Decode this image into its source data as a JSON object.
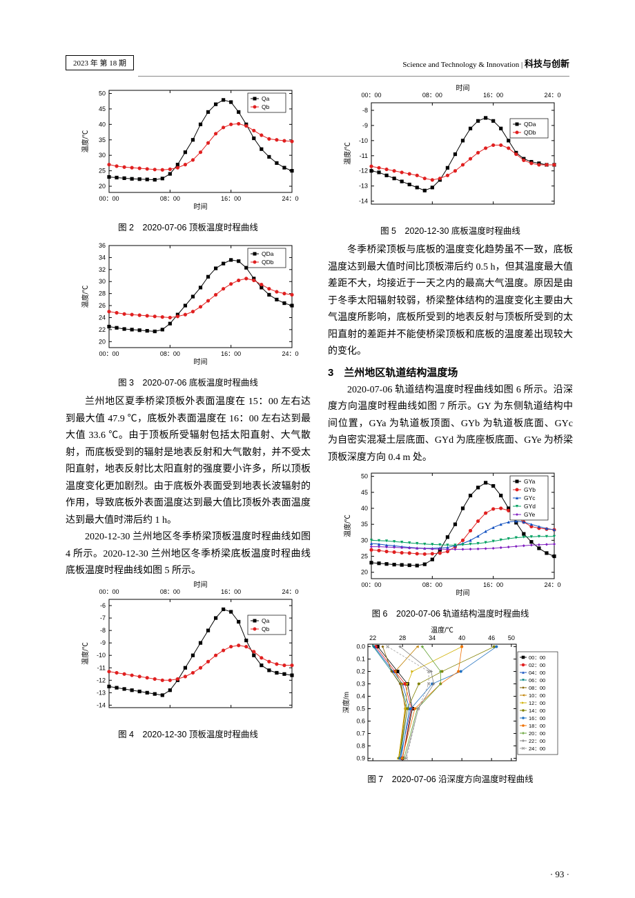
{
  "header": {
    "issue": "2023 年 第 18 期",
    "journal_en": "Science and Technology & Innovation",
    "journal_cn": "科技与创新"
  },
  "page_number": "· 93 ·",
  "fig2": {
    "caption": "图 2　2020-07-06 顶板温度时程曲线",
    "type": "line",
    "xlabel": "时间",
    "ylabel": "温度/℃",
    "xticks": [
      "00：00",
      "08：00",
      "16：00",
      "24：00"
    ],
    "yticks": [
      20,
      25,
      30,
      35,
      40,
      45,
      50
    ],
    "ylim": [
      18,
      51
    ],
    "series": [
      {
        "name": "Qa",
        "marker": "square",
        "color": "#000000",
        "x": [
          0,
          1,
          2,
          3,
          4,
          5,
          6,
          7,
          8,
          9,
          10,
          11,
          12,
          13,
          14,
          15,
          16,
          17,
          18,
          19,
          20,
          21,
          22,
          23,
          24
        ],
        "y": [
          23,
          22.8,
          22.6,
          22.4,
          22.3,
          22.2,
          22.1,
          22.5,
          24,
          27,
          31,
          35,
          40,
          44,
          46.5,
          47.9,
          47.2,
          44,
          40,
          35.5,
          32,
          29.5,
          27.5,
          26,
          25
        ]
      },
      {
        "name": "Qb",
        "marker": "circle",
        "color": "#e02020",
        "x": [
          0,
          1,
          2,
          3,
          4,
          5,
          6,
          7,
          8,
          9,
          10,
          11,
          12,
          13,
          14,
          15,
          16,
          17,
          18,
          19,
          20,
          21,
          22,
          23,
          24
        ],
        "y": [
          27,
          26.5,
          26.2,
          26,
          25.8,
          25.6,
          25.4,
          25.3,
          25.5,
          26,
          27,
          28.5,
          31,
          34,
          37,
          39,
          40,
          40.2,
          39.5,
          38,
          36.5,
          35.3,
          35,
          34.7,
          34.5
        ]
      }
    ],
    "legend_pos": "top-right",
    "background_color": "#ffffff",
    "axis_color": "#000000",
    "title_fontsize": 10,
    "label_fontsize": 10
  },
  "fig3": {
    "caption": "图 3　2020-07-06 底板温度时程曲线",
    "type": "line",
    "xlabel": "时间",
    "ylabel": "温度/℃",
    "xticks": [
      "00：00",
      "08：00",
      "16：00",
      "24：00"
    ],
    "yticks": [
      20,
      22,
      24,
      26,
      28,
      30,
      32,
      34,
      36
    ],
    "ylim": [
      19,
      36
    ],
    "series": [
      {
        "name": "QDa",
        "marker": "square",
        "color": "#000000",
        "x": [
          0,
          1,
          2,
          3,
          4,
          5,
          6,
          7,
          8,
          9,
          10,
          11,
          12,
          13,
          14,
          15,
          16,
          17,
          18,
          19,
          20,
          21,
          22,
          23,
          24
        ],
        "y": [
          22.5,
          22.3,
          22.1,
          22,
          21.9,
          21.8,
          21.7,
          22,
          23,
          24.5,
          26,
          27.5,
          29,
          30.8,
          32.2,
          33,
          33.6,
          33.4,
          32.3,
          30.5,
          29,
          27.8,
          27,
          26.4,
          26
        ]
      },
      {
        "name": "QDb",
        "marker": "circle",
        "color": "#e02020",
        "x": [
          0,
          1,
          2,
          3,
          4,
          5,
          6,
          7,
          8,
          9,
          10,
          11,
          12,
          13,
          14,
          15,
          16,
          17,
          18,
          19,
          20,
          21,
          22,
          23,
          24
        ],
        "y": [
          25,
          24.8,
          24.6,
          24.5,
          24.4,
          24.3,
          24.2,
          24.1,
          24,
          24.2,
          24.5,
          25,
          25.8,
          26.8,
          27.8,
          28.8,
          29.6,
          30.2,
          30.5,
          30.2,
          29.5,
          28.8,
          28.3,
          28,
          27.8
        ]
      }
    ],
    "legend_pos": "top-right"
  },
  "para1": "兰州地区夏季桥梁顶板外表面温度在 15：00 左右达到最大值 47.9 ℃，底板外表面温度在 16：00 左右达到最大值 33.6 ℃。由于顶板所受辐射包括太阳直射、大气散射，而底板受到的辐射是地表反射和大气散射，并不受太阳直射，地表反射比太阳直射的强度要小许多，所以顶板温度变化更加剧烈。由于底板外表面受到地表长波辐射的作用，导致底板外表面温度达到最大值比顶板外表面温度达到最大值时滞后约 1 h。",
  "para2": "2020-12-30 兰州地区冬季桥梁顶板温度时程曲线如图 4 所示。2020-12-30 兰州地区冬季桥梁底板温度时程曲线底板温度时程曲线如图 5 所示。",
  "fig4": {
    "caption": "图 4　2020-12-30 顶板温度时程曲线",
    "type": "line",
    "xlabel": "时间",
    "ylabel": "温度/℃",
    "xticks": [
      "00：00",
      "08：00",
      "16：00",
      "24：00"
    ],
    "yticks": [
      -14,
      -13,
      -12,
      -11,
      -10,
      -9,
      -8,
      -7,
      -6
    ],
    "ylim": [
      -14.2,
      -5.5
    ],
    "xaxis_pos": "top",
    "series": [
      {
        "name": "Qa",
        "marker": "square",
        "color": "#000000",
        "x": [
          0,
          1,
          2,
          3,
          4,
          5,
          6,
          7,
          8,
          9,
          10,
          11,
          12,
          13,
          14,
          15,
          16,
          17,
          18,
          19,
          20,
          21,
          22,
          23,
          24
        ],
        "y": [
          -12.5,
          -12.6,
          -12.7,
          -12.8,
          -12.9,
          -13,
          -13.1,
          -13.2,
          -12.8,
          -12,
          -11,
          -10,
          -9,
          -8,
          -7,
          -6.3,
          -6.5,
          -7.3,
          -8.8,
          -10,
          -10.8,
          -11.2,
          -11.4,
          -11.5,
          -11.6
        ]
      },
      {
        "name": "Qb",
        "marker": "circle",
        "color": "#e02020",
        "x": [
          0,
          1,
          2,
          3,
          4,
          5,
          6,
          7,
          8,
          9,
          10,
          11,
          12,
          13,
          14,
          15,
          16,
          17,
          18,
          19,
          20,
          21,
          22,
          23,
          24
        ],
        "y": [
          -11.3,
          -11.4,
          -11.5,
          -11.6,
          -11.7,
          -11.8,
          -11.9,
          -12,
          -12,
          -11.9,
          -11.7,
          -11.4,
          -11,
          -10.5,
          -10,
          -9.6,
          -9.3,
          -9.2,
          -9.3,
          -9.7,
          -10.2,
          -10.5,
          -10.7,
          -10.8,
          -10.8
        ]
      }
    ],
    "legend_pos": "right"
  },
  "fig5": {
    "caption": "图 5　2020-12-30 底板温度时程曲线",
    "type": "line",
    "xlabel": "时间",
    "ylabel": "温度/℃",
    "xticks": [
      "00：00",
      "08：00",
      "16：00",
      "24：00"
    ],
    "yticks": [
      -14,
      -13,
      -12,
      -11,
      -10,
      -9,
      -8
    ],
    "ylim": [
      -14.2,
      -7.5
    ],
    "xaxis_pos": "top",
    "series": [
      {
        "name": "QDa",
        "marker": "square",
        "color": "#000000",
        "x": [
          0,
          1,
          2,
          3,
          4,
          5,
          6,
          7,
          8,
          9,
          10,
          11,
          12,
          13,
          14,
          15,
          16,
          17,
          18,
          19,
          20,
          21,
          22,
          23,
          24
        ],
        "y": [
          -12,
          -12.1,
          -12.3,
          -12.5,
          -12.7,
          -12.9,
          -13.1,
          -13.3,
          -13.1,
          -12.6,
          -11.8,
          -10.9,
          -10,
          -9.2,
          -8.7,
          -8.5,
          -8.7,
          -9.2,
          -10,
          -10.8,
          -11.2,
          -11.4,
          -11.5,
          -11.6,
          -11.6
        ]
      },
      {
        "name": "QDb",
        "marker": "circle",
        "color": "#e02020",
        "x": [
          0,
          1,
          2,
          3,
          4,
          5,
          6,
          7,
          8,
          9,
          10,
          11,
          12,
          13,
          14,
          15,
          16,
          17,
          18,
          19,
          20,
          21,
          22,
          23,
          24
        ],
        "y": [
          -11.7,
          -11.8,
          -11.9,
          -12,
          -12.1,
          -12.2,
          -12.3,
          -12.5,
          -12.6,
          -12.5,
          -12.3,
          -12,
          -11.6,
          -11.2,
          -10.8,
          -10.5,
          -10.3,
          -10.3,
          -10.5,
          -10.9,
          -11.3,
          -11.5,
          -11.6,
          -11.6,
          -11.6
        ]
      }
    ],
    "legend_pos": "right"
  },
  "para3": "冬季桥梁顶板与底板的温度变化趋势虽不一致，底板温度达到最大值时间比顶板滞后约 0.5 h，但其温度最大值差距不大，均接近于一天之内的最高大气温度。原因是由于冬季太阳辐射较弱，桥梁整体结构的温度变化主要由大气温度所影响，底板所受到的地表反射与顶板所受到的太阳直射的差距并不能使桥梁顶板和底板的温度差出现较大的变化。",
  "section3_title": "3　兰州地区轨道结构温度场",
  "para4": "2020-07-06 轨道结构温度时程曲线如图 6 所示。沿深度方向温度时程曲线如图 7 所示。GY 为东侧轨道结构中间位置，GYa 为轨道板顶面、GYb 为轨道板底面、GYc 为自密实混凝土层底面、GYd 为底座板底面、GYe 为桥梁顶板深度方向 0.4 m 处。",
  "fig6": {
    "caption": "图 6　2020-07-06 轨道结构温度时程曲线",
    "type": "line",
    "xlabel": "时间",
    "ylabel": "温度/℃",
    "xticks": [
      "00：00",
      "08：00",
      "16：00",
      "24：00"
    ],
    "yticks": [
      20,
      25,
      30,
      35,
      40,
      45,
      50
    ],
    "ylim": [
      18,
      51
    ],
    "series": [
      {
        "name": "GYa",
        "marker": "square",
        "color": "#000000",
        "x": [
          0,
          1,
          2,
          3,
          4,
          5,
          6,
          7,
          8,
          9,
          10,
          11,
          12,
          13,
          14,
          15,
          16,
          17,
          18,
          19,
          20,
          21,
          22,
          23,
          24
        ],
        "y": [
          23,
          22.8,
          22.6,
          22.4,
          22.3,
          22.2,
          22.1,
          22.5,
          24,
          27,
          31,
          35,
          40,
          44,
          46.5,
          48,
          47,
          44,
          40,
          35.5,
          32,
          29.5,
          27.5,
          26,
          25
        ]
      },
      {
        "name": "GYb",
        "marker": "circle",
        "color": "#e02020",
        "x": [
          0,
          1,
          2,
          3,
          4,
          5,
          6,
          7,
          8,
          9,
          10,
          11,
          12,
          13,
          14,
          15,
          16,
          17,
          18,
          19,
          20,
          21,
          22,
          23,
          24
        ],
        "y": [
          27,
          26.8,
          26.5,
          26.3,
          26.1,
          26,
          25.8,
          25.7,
          25.8,
          26,
          26.5,
          28,
          30,
          33,
          36,
          38.5,
          39.8,
          40,
          39.3,
          37.5,
          35.7,
          34.3,
          33.8,
          33.5,
          33.3
        ]
      },
      {
        "name": "GYc",
        "marker": "triangle",
        "color": "#1050c0",
        "x": [
          0,
          1,
          2,
          3,
          4,
          5,
          6,
          7,
          8,
          9,
          10,
          11,
          12,
          13,
          14,
          15,
          16,
          17,
          18,
          19,
          20,
          21,
          22,
          23,
          24
        ],
        "y": [
          29,
          28.8,
          28.5,
          28.3,
          28,
          27.8,
          27.6,
          27.5,
          27.5,
          27.6,
          27.8,
          28.3,
          29,
          30,
          31.3,
          32.8,
          34,
          35,
          35.7,
          36,
          35.7,
          35,
          34.3,
          33.7,
          33.3
        ]
      },
      {
        "name": "GYd",
        "marker": "triangledown",
        "color": "#00a060",
        "x": [
          0,
          1,
          2,
          3,
          4,
          5,
          6,
          7,
          8,
          9,
          10,
          11,
          12,
          13,
          14,
          15,
          16,
          17,
          18,
          19,
          20,
          21,
          22,
          23,
          24
        ],
        "y": [
          30,
          29.9,
          29.8,
          29.6,
          29.4,
          29.2,
          29,
          28.8,
          28.7,
          28.6,
          28.5,
          28.5,
          28.6,
          28.8,
          29,
          29.3,
          29.7,
          30.1,
          30.5,
          30.8,
          31,
          31.1,
          31.2,
          31.2,
          31.2
        ]
      },
      {
        "name": "GYe",
        "marker": "diamond",
        "color": "#8020c0",
        "x": [
          0,
          1,
          2,
          3,
          4,
          5,
          6,
          7,
          8,
          9,
          10,
          11,
          12,
          13,
          14,
          15,
          16,
          17,
          18,
          19,
          20,
          21,
          22,
          23,
          24
        ],
        "y": [
          28,
          28,
          27.9,
          27.8,
          27.7,
          27.6,
          27.5,
          27.4,
          27.3,
          27.25,
          27.2,
          27.2,
          27.2,
          27.25,
          27.3,
          27.4,
          27.5,
          27.7,
          27.9,
          28.1,
          28.3,
          28.5,
          28.6,
          28.7,
          28.8
        ]
      }
    ],
    "legend_pos": "top-right"
  },
  "fig7": {
    "caption": "图 7　2020-07-06 沿深度方向温度时程曲线",
    "type": "line",
    "xlabel": "温度/℃",
    "ylabel": "深度/m",
    "xticks": [
      22,
      28,
      34,
      40,
      46,
      50
    ],
    "yticks": [
      0.0,
      0.1,
      0.2,
      0.3,
      0.4,
      0.5,
      0.6,
      0.7,
      0.8,
      0.9
    ],
    "ylim": [
      0.92,
      -0.02
    ],
    "xlim": [
      21,
      51
    ],
    "xaxis_pos": "top",
    "depths": [
      0.0,
      0.2,
      0.3,
      0.5,
      0.9
    ],
    "times": [
      {
        "name": "00：00",
        "marker": "square",
        "color": "#000000",
        "temps": [
          23,
          27,
          29,
          30,
          28
        ]
      },
      {
        "name": "02：00",
        "marker": "circle",
        "color": "#e02020",
        "temps": [
          22.6,
          26.5,
          28.5,
          29.8,
          28
        ]
      },
      {
        "name": "04：00",
        "marker": "triangle",
        "color": "#1050c0",
        "temps": [
          22.3,
          26.1,
          28,
          29.4,
          27.7
        ]
      },
      {
        "name": "06：00",
        "marker": "triangledown",
        "color": "#008080",
        "temps": [
          22.1,
          25.8,
          27.6,
          29,
          27.5
        ]
      },
      {
        "name": "08：00",
        "marker": "diamond",
        "color": "#806000",
        "temps": [
          24,
          25.8,
          27.5,
          28.7,
          27.3
        ]
      },
      {
        "name": "10：00",
        "marker": "triangleleft",
        "color": "#c08000",
        "temps": [
          31,
          26.5,
          27.8,
          28.5,
          27.2
        ]
      },
      {
        "name": "12：00",
        "marker": "triangleright",
        "color": "#d0b000",
        "temps": [
          40,
          30,
          29,
          28.6,
          27.2
        ]
      },
      {
        "name": "14：00",
        "marker": "hexagon",
        "color": "#808000",
        "temps": [
          46.5,
          36,
          31.3,
          29,
          27.3
        ]
      },
      {
        "name": "16：00",
        "marker": "star",
        "color": "#2070c0",
        "temps": [
          47,
          39.8,
          34,
          29.7,
          27.5
        ]
      },
      {
        "name": "18：00",
        "marker": "pentagon",
        "color": "#f07000",
        "temps": [
          40,
          39.3,
          35.7,
          30.5,
          27.9
        ]
      },
      {
        "name": "20：00",
        "marker": "cross",
        "color": "#60a030",
        "temps": [
          32,
          35.7,
          35.7,
          31,
          28.3
        ]
      },
      {
        "name": "22：00",
        "marker": "plus",
        "color": "#808080",
        "temps": [
          27.5,
          33.8,
          34.3,
          31.2,
          28.6
        ]
      },
      {
        "name": "24：00",
        "marker": "x",
        "color": "#a0a0a0",
        "temps": [
          25,
          33.3,
          33.3,
          31.2,
          28.8
        ]
      }
    ],
    "legend_pos": "right"
  }
}
